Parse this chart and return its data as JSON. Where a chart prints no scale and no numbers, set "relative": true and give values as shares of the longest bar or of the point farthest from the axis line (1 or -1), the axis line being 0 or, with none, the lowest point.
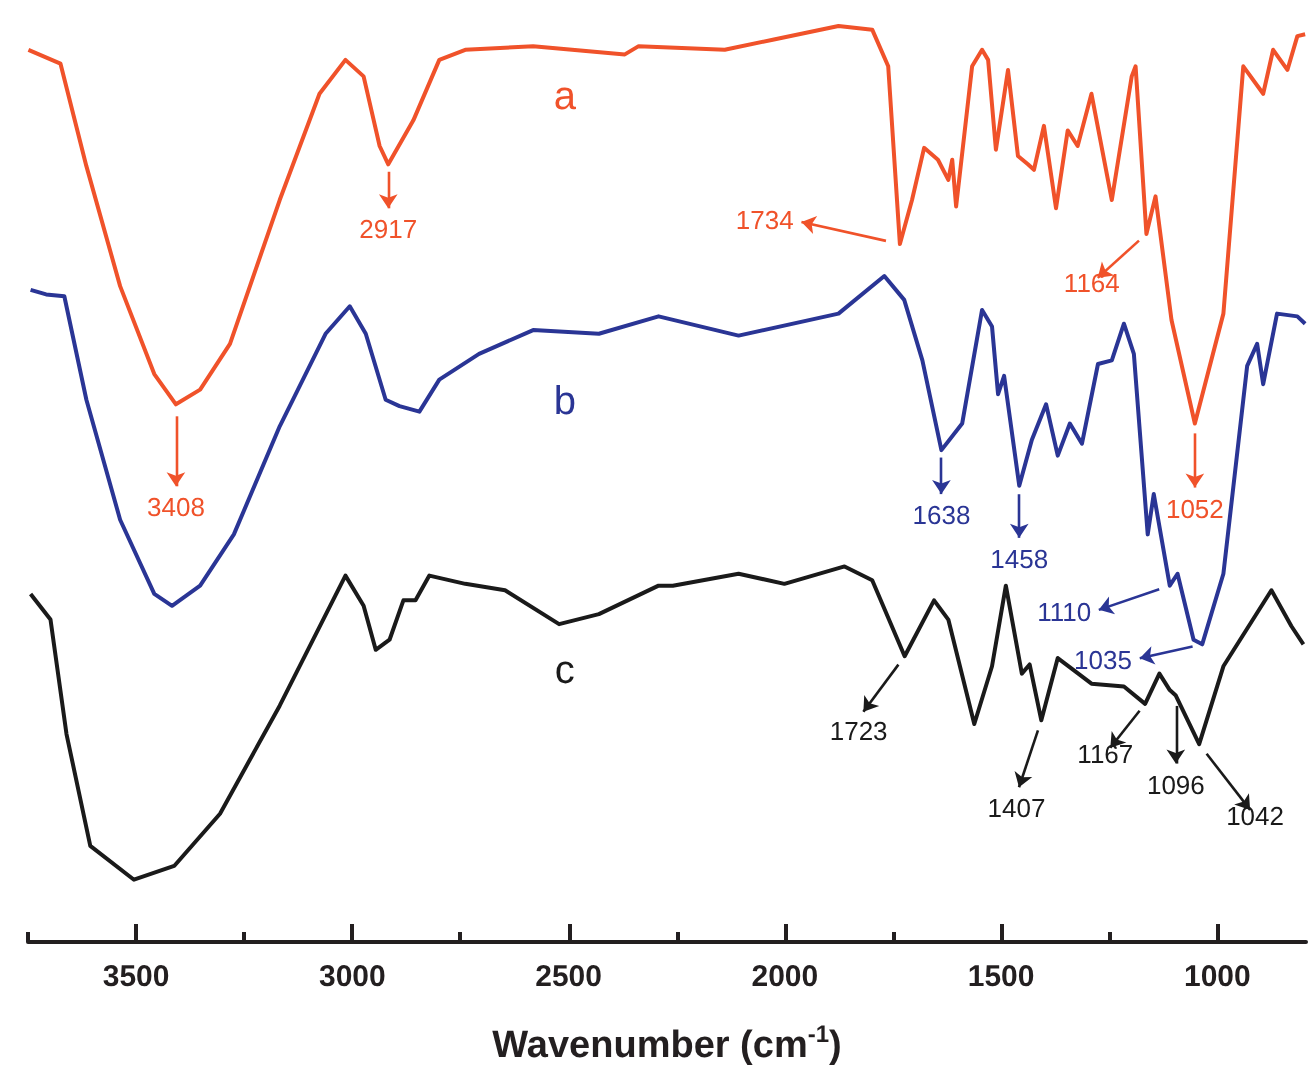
{
  "chart_data": {
    "type": "line",
    "relative": true,
    "xlabel": "Wavenumber (cm$^{-1}$)",
    "xlim": [
      3750,
      795
    ],
    "xticks": [
      {
        "value": 3750,
        "label": null
      },
      3500,
      {
        "value": 3250,
        "label": null
      },
      3000,
      {
        "value": 2750,
        "label": null
      },
      2500,
      {
        "value": 2250,
        "label": null
      },
      2000,
      {
        "value": 1750,
        "label": null
      },
      1500,
      {
        "value": 1250,
        "label": null
      },
      1000
    ],
    "series": [
      {
        "name": "a",
        "color": "#f0522a",
        "x": [
          3749,
          3675,
          3615,
          3537,
          3458,
          3408,
          3352,
          3283,
          3168,
          3076,
          3016,
          2974,
          2937,
          2917,
          2859,
          2799,
          2739,
          2582,
          2370,
          2338,
          2139,
          2028,
          1876,
          1798,
          1761,
          1734,
          1706,
          1678,
          1646,
          1622,
          1613,
          1604,
          1567,
          1544,
          1530,
          1512,
          1484,
          1461,
          1438,
          1424,
          1401,
          1373,
          1346,
          1323,
          1291,
          1244,
          1198,
          1189,
          1164,
          1143,
          1106,
          1052,
          986,
          940,
          894,
          871,
          838,
          815,
          797
        ],
        "values": [
          0.974,
          0.959,
          0.847,
          0.716,
          0.62,
          0.587,
          0.603,
          0.653,
          0.81,
          0.926,
          0.963,
          0.945,
          0.869,
          0.849,
          0.897,
          0.963,
          0.974,
          0.978,
          0.969,
          0.978,
          0.974,
          0.985,
          1.0,
          0.996,
          0.956,
          0.762,
          0.81,
          0.867,
          0.854,
          0.832,
          0.854,
          0.803,
          0.956,
          0.974,
          0.963,
          0.865,
          0.952,
          0.858,
          0.849,
          0.843,
          0.891,
          0.801,
          0.886,
          0.869,
          0.926,
          0.81,
          0.945,
          0.956,
          0.773,
          0.814,
          0.679,
          0.566,
          0.686,
          0.956,
          0.926,
          0.974,
          0.952,
          0.989,
          0.991
        ]
      },
      {
        "name": "b",
        "color": "#2a3595",
        "x": [
          3744,
          3708,
          3666,
          3615,
          3537,
          3458,
          3417,
          3352,
          3274,
          3168,
          3062,
          3006,
          2969,
          2923,
          2891,
          2845,
          2799,
          2707,
          2582,
          2430,
          2292,
          2107,
          1876,
          1770,
          1724,
          1682,
          1638,
          1590,
          1544,
          1521,
          1507,
          1493,
          1458,
          1429,
          1396,
          1369,
          1341,
          1313,
          1276,
          1244,
          1216,
          1193,
          1161,
          1147,
          1110,
          1092,
          1055,
          1035,
          986,
          931,
          908,
          894,
          862,
          815,
          797
        ],
        "values": [
          0.712,
          0.707,
          0.705,
          0.592,
          0.461,
          0.38,
          0.367,
          0.389,
          0.445,
          0.563,
          0.664,
          0.694,
          0.664,
          0.592,
          0.585,
          0.579,
          0.614,
          0.642,
          0.668,
          0.664,
          0.683,
          0.662,
          0.686,
          0.727,
          0.701,
          0.635,
          0.537,
          0.566,
          0.69,
          0.672,
          0.598,
          0.618,
          0.498,
          0.548,
          0.587,
          0.531,
          0.566,
          0.544,
          0.631,
          0.635,
          0.675,
          0.642,
          0.445,
          0.489,
          0.389,
          0.402,
          0.33,
          0.325,
          0.402,
          0.629,
          0.653,
          0.609,
          0.686,
          0.683,
          0.675
        ]
      },
      {
        "name": "c",
        "color": "#1a1a1a",
        "x": [
          3744,
          3698,
          3661,
          3606,
          3505,
          3412,
          3306,
          3168,
          3016,
          2974,
          2946,
          2914,
          2882,
          2854,
          2822,
          2739,
          2647,
          2522,
          2430,
          2292,
          2259,
          2107,
          2001,
          1862,
          1798,
          1723,
          1655,
          1622,
          1562,
          1521,
          1489,
          1452,
          1434,
          1407,
          1369,
          1291,
          1216,
          1167,
          1134,
          1110,
          1096,
          1042,
          986,
          875,
          829,
          801
        ],
        "values": [
          0.38,
          0.352,
          0.227,
          0.105,
          0.068,
          0.083,
          0.14,
          0.258,
          0.4,
          0.367,
          0.319,
          0.33,
          0.373,
          0.373,
          0.4,
          0.391,
          0.384,
          0.347,
          0.358,
          0.389,
          0.389,
          0.402,
          0.391,
          0.41,
          0.395,
          0.312,
          0.373,
          0.352,
          0.238,
          0.301,
          0.389,
          0.293,
          0.303,
          0.242,
          0.31,
          0.282,
          0.279,
          0.26,
          0.293,
          0.275,
          0.269,
          0.216,
          0.301,
          0.384,
          0.345,
          0.325
        ]
      }
    ],
    "annotations": [
      {
        "text": "2917",
        "x": 2917,
        "y": 0.849
      },
      {
        "text": "3408",
        "x": 3408,
        "y": 0.587
      },
      {
        "text": "1734",
        "x": 1734,
        "y": 0.762
      },
      {
        "text": "1164",
        "x": 1164,
        "y": 0.773
      },
      {
        "text": "1052",
        "x": 1052,
        "y": 0.566
      },
      {
        "text": "1638",
        "x": 1638,
        "y": 0.537
      },
      {
        "text": "1458",
        "x": 1458,
        "y": 0.498
      },
      {
        "text": "1110",
        "x": 1110,
        "y": 0.389
      },
      {
        "text": "1035",
        "x": 1035,
        "y": 0.325
      },
      {
        "text": "1723",
        "x": 1723,
        "y": 0.312
      },
      {
        "text": "1407",
        "x": 1407,
        "y": 0.242
      },
      {
        "text": "1167",
        "x": 1167,
        "y": 0.26
      },
      {
        "text": "1096",
        "x": 1096,
        "y": 0.269
      },
      {
        "text": "1042",
        "x": 1042,
        "y": 0.216
      }
    ]
  }
}
